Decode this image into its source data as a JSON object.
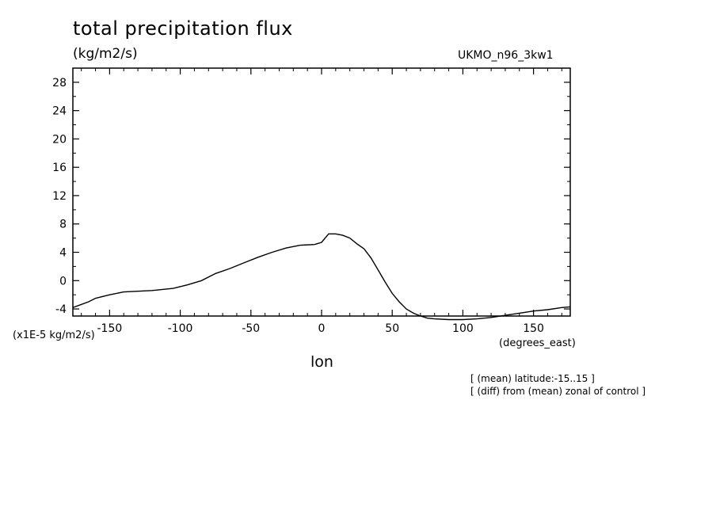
{
  "chart_data": {
    "type": "line",
    "title": "total precipitation flux",
    "units": "(kg/m2/s)",
    "dataset_label": "UKMO_n96_3kw1",
    "scale_label": "(x1E-5 kg/m2/s)",
    "xlabel": "lon",
    "x_units": "(degrees_east)",
    "notes": [
      "[ (mean) latitude:-15..15 ]",
      "[ (diff) from (mean) zonal of control ]"
    ],
    "xlim": [
      -176,
      176
    ],
    "ylim": [
      -5,
      30
    ],
    "xticks": [
      -150,
      -100,
      -50,
      0,
      50,
      100,
      150
    ],
    "xtick_labels": [
      "-150",
      "-100",
      "-50",
      "0",
      "50",
      "100",
      "150"
    ],
    "yticks": [
      -4,
      0,
      4,
      8,
      12,
      16,
      20,
      24,
      28
    ],
    "ytick_labels": [
      "-4",
      "0",
      "4",
      "8",
      "12",
      "16",
      "20",
      "24",
      "28"
    ],
    "grid": false,
    "series": [
      {
        "name": "UKMO_n96_3kw1",
        "x": [
          -176,
          -165,
          -160,
          -150,
          -140,
          -130,
          -120,
          -105,
          -95,
          -85,
          -75,
          -65,
          -55,
          -45,
          -35,
          -25,
          -15,
          -5,
          0,
          5,
          10,
          15,
          20,
          25,
          30,
          35,
          40,
          45,
          50,
          55,
          60,
          65,
          70,
          75,
          80,
          90,
          100,
          110,
          120,
          130,
          140,
          150,
          160,
          170,
          176
        ],
        "y": [
          -3.8,
          -3.0,
          -2.5,
          -2.0,
          -1.6,
          -1.5,
          -1.4,
          -1.1,
          -0.6,
          0.0,
          1.0,
          1.7,
          2.5,
          3.3,
          4.0,
          4.6,
          5.0,
          5.1,
          5.4,
          6.6,
          6.6,
          6.4,
          6.0,
          5.2,
          4.5,
          3.2,
          1.5,
          -0.2,
          -1.8,
          -3.0,
          -4.0,
          -4.6,
          -5.0,
          -5.3,
          -5.4,
          -5.5,
          -5.5,
          -5.4,
          -5.2,
          -4.9,
          -4.6,
          -4.3,
          -4.1,
          -3.8,
          -3.7
        ]
      }
    ]
  }
}
